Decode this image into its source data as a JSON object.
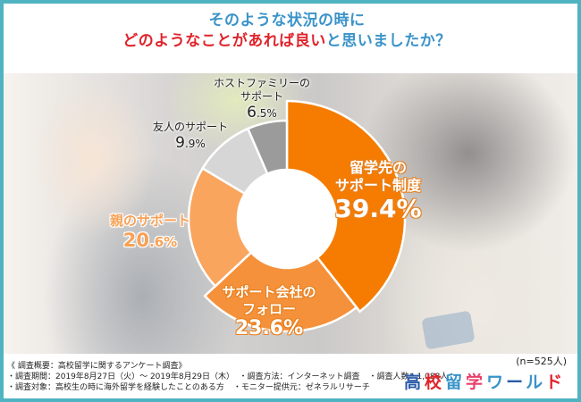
{
  "title": {
    "line1": "そのような状況の時に",
    "line2_highlight": "どのようなことがあれば良い",
    "line2_rest": "と思いましたか？"
  },
  "colors": {
    "frame": "#4fb3c2",
    "title_blue": "#3a93c9",
    "title_red": "#e0242c"
  },
  "chart_data": {
    "type": "pie",
    "variant": "donut",
    "title": "そのような状況の時にどのようなことがあれば良いと思いましたか？",
    "sample_size": "n=525人",
    "unit": "%",
    "categories": [
      "留学先のサポート制度",
      "サポート会社のフォロー",
      "親のサポート",
      "友人のサポート",
      "ホストファミリーのサポート"
    ],
    "values": [
      39.4,
      23.6,
      20.6,
      9.9,
      6.5
    ],
    "colors": [
      "#f57c00",
      "#f5913a",
      "#f9a55e",
      "#d6d6d6",
      "#9b9b9b"
    ],
    "start_angle": "12 o'clock",
    "direction": "clockwise",
    "legend": "none (direct labels)"
  },
  "labels": [
    {
      "name": "留学先の",
      "name2": "サポート制度",
      "int": "39",
      "dec": ".4%"
    },
    {
      "name": "サポート会社の",
      "name2": "フォロー",
      "int": "23",
      "dec": ".6%"
    },
    {
      "name": "親のサポート",
      "name2": "",
      "int": "20",
      "dec": ".6%"
    },
    {
      "name": "友人のサポート",
      "name2": "",
      "int": "9",
      "dec": ".9%"
    },
    {
      "name": "ホストファミリーの",
      "name2": "サポート",
      "int": "6",
      "dec": ".5%"
    }
  ],
  "sample": "(n=525人)",
  "footer": {
    "heading": "《 調査概要：高校留学に関するアンケート調査》",
    "period": "・調査期間：2019年8月27日（火）～ 2019年8月29日（木）",
    "method": "・調査方法：インターネット調査",
    "count": "・調査人数：1,088人",
    "target": "・調査対象：高校生の時に海外留学を経験したことのある方",
    "provider": "・モニター提供元：ゼネラルリサーチ"
  },
  "logo": {
    "chars": [
      "高",
      "校",
      "留",
      "学",
      "ワ",
      "ー",
      "ル",
      "ド"
    ],
    "colors": [
      "#2b5aa8",
      "#e0242c",
      "#3a93c9",
      "#e8406a",
      "#3a93c9",
      "#2b5aa8",
      "#3a93c9",
      "#e0242c"
    ]
  }
}
